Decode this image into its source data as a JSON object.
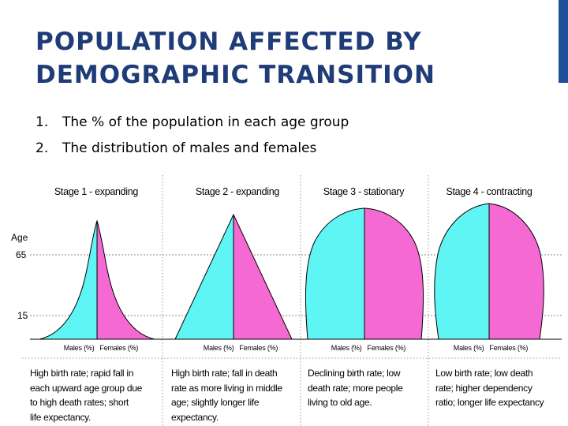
{
  "slide": {
    "title_line1": "POPULATION AFFECTED BY",
    "title_line2": "DEMOGRAPHIC TRANSITION",
    "bullets": [
      {
        "num": "1.",
        "text": "The % of the population in each age group"
      },
      {
        "num": "2.",
        "text": "The distribution of males and females"
      }
    ],
    "accent_color": "#1f4e9c",
    "title_color": "#1f3c78"
  },
  "figure": {
    "age_label": "Age",
    "age_65": "65",
    "age_15": "15",
    "colors": {
      "males": "#5ff5f5",
      "females": "#f569d2"
    },
    "stages": [
      {
        "title": "Stage 1 - expanding",
        "males_label": "Males (%)",
        "females_label": "Females (%)",
        "description": [
          "High birth rate; rapid fall in",
          "each upward age group due",
          "to high death rates; short",
          "life expectancy."
        ]
      },
      {
        "title": "Stage 2 - expanding",
        "males_label": "Males (%)",
        "females_label": "Females (%)",
        "description": [
          "High birth rate; fall in death",
          "rate as more living in middle",
          "age; slightly longer life",
          "expectancy."
        ]
      },
      {
        "title": "Stage 3 - stationary",
        "males_label": "Males (%)",
        "females_label": "Females (%)",
        "description": [
          "Declining birth rate; low",
          "death rate; more people",
          "living to old age."
        ]
      },
      {
        "title": "Stage 4 - contracting",
        "males_label": "Males (%)",
        "females_label": "Females (%)",
        "description": [
          "Low birth rate; low death",
          "rate; higher dependency",
          "ratio; longer life expectancy"
        ]
      }
    ]
  }
}
